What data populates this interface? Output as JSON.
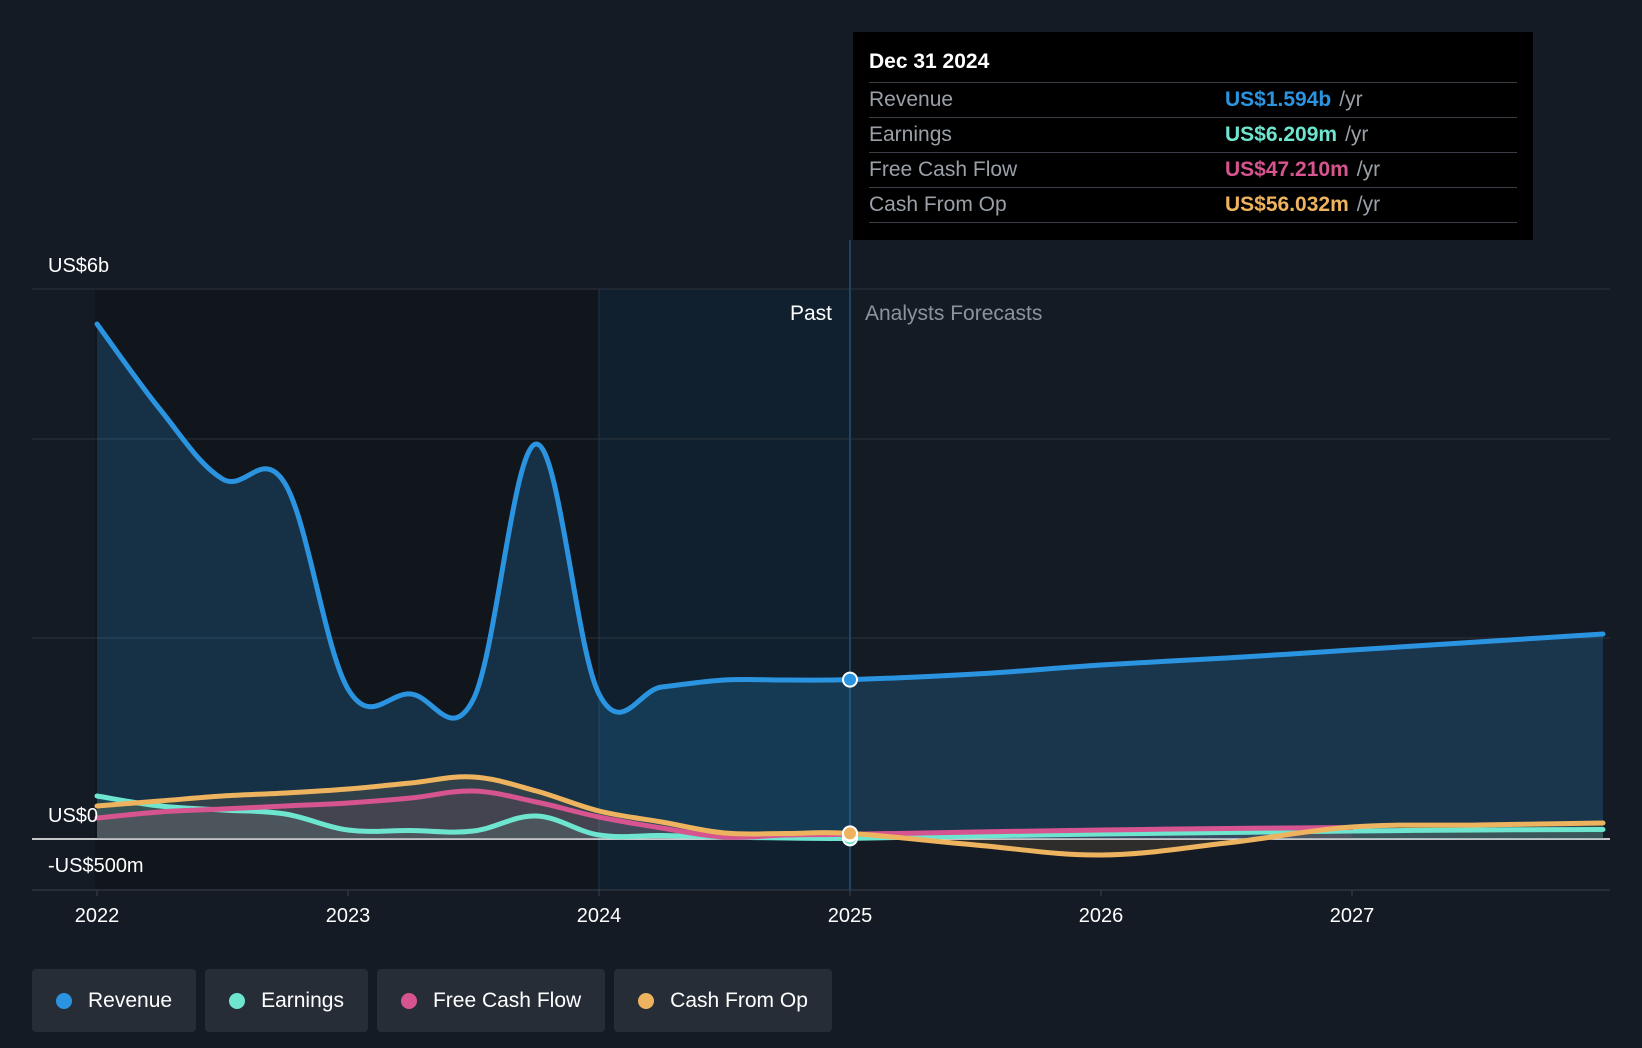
{
  "chart_data": {
    "type": "line",
    "x_ticks": [
      "2022",
      "2023",
      "2024",
      "2025",
      "2026",
      "2027"
    ],
    "y_labels": {
      "top": "US$6b",
      "zero": "US$0",
      "bottom": "-US$500m"
    },
    "ylim": [
      -500,
      5500
    ],
    "units": "US$ millions",
    "divider_labels": {
      "past": "Past",
      "forecast": "Analysts Forecasts"
    },
    "series": [
      {
        "name": "Revenue",
        "color": "#2b94e1",
        "fill": true,
        "points": [
          [
            2022.0,
            5150
          ],
          [
            2022.25,
            4300
          ],
          [
            2022.5,
            3600
          ],
          [
            2022.75,
            3550
          ],
          [
            2023.0,
            1500
          ],
          [
            2023.25,
            1450
          ],
          [
            2023.5,
            1400
          ],
          [
            2023.75,
            3950
          ],
          [
            2024.0,
            1450
          ],
          [
            2024.25,
            1520
          ],
          [
            2024.5,
            1590
          ],
          [
            2024.75,
            1590
          ],
          [
            2025.0,
            1594
          ],
          [
            2025.5,
            1650
          ],
          [
            2026.0,
            1740
          ],
          [
            2026.5,
            1810
          ],
          [
            2027.0,
            1890
          ],
          [
            2027.5,
            1970
          ],
          [
            2028.0,
            2050
          ]
        ]
      },
      {
        "name": "Earnings",
        "color": "#6ee6cf",
        "points": [
          [
            2022.0,
            430
          ],
          [
            2022.25,
            330
          ],
          [
            2022.5,
            290
          ],
          [
            2022.75,
            250
          ],
          [
            2023.0,
            90
          ],
          [
            2023.25,
            85
          ],
          [
            2023.5,
            80
          ],
          [
            2023.75,
            230
          ],
          [
            2024.0,
            40
          ],
          [
            2024.25,
            35
          ],
          [
            2024.5,
            20
          ],
          [
            2024.75,
            10
          ],
          [
            2025.0,
            6.209
          ],
          [
            2025.5,
            30
          ],
          [
            2026.0,
            50
          ],
          [
            2026.5,
            65
          ],
          [
            2027.0,
            80
          ],
          [
            2027.5,
            90
          ],
          [
            2028.0,
            95
          ]
        ]
      },
      {
        "name": "Free Cash Flow",
        "color": "#d6548f",
        "points": [
          [
            2022.0,
            210
          ],
          [
            2022.25,
            270
          ],
          [
            2022.5,
            300
          ],
          [
            2022.75,
            330
          ],
          [
            2023.0,
            360
          ],
          [
            2023.25,
            410
          ],
          [
            2023.5,
            480
          ],
          [
            2023.75,
            370
          ],
          [
            2024.0,
            220
          ],
          [
            2024.25,
            110
          ],
          [
            2024.5,
            20
          ],
          [
            2024.75,
            40
          ],
          [
            2025.0,
            47.21
          ],
          [
            2025.5,
            70
          ],
          [
            2026.0,
            90
          ],
          [
            2026.5,
            105
          ],
          [
            2027.0,
            115
          ]
        ]
      },
      {
        "name": "Cash From Op",
        "color": "#edb35f",
        "points": [
          [
            2022.0,
            330
          ],
          [
            2022.25,
            380
          ],
          [
            2022.5,
            430
          ],
          [
            2022.75,
            460
          ],
          [
            2023.0,
            500
          ],
          [
            2023.25,
            560
          ],
          [
            2023.5,
            620
          ],
          [
            2023.75,
            480
          ],
          [
            2024.0,
            280
          ],
          [
            2024.25,
            170
          ],
          [
            2024.5,
            60
          ],
          [
            2024.75,
            55
          ],
          [
            2025.0,
            56.032
          ],
          [
            2025.5,
            -60
          ],
          [
            2026.0,
            -160
          ],
          [
            2026.5,
            -40
          ],
          [
            2027.0,
            120
          ],
          [
            2027.5,
            140
          ],
          [
            2028.0,
            160
          ]
        ]
      }
    ]
  },
  "tooltip": {
    "date": "Dec 31 2024",
    "rows": [
      {
        "label": "Revenue",
        "value": "US$1.594b",
        "unit": "/yr",
        "color": "#2b94e1"
      },
      {
        "label": "Earnings",
        "value": "US$6.209m",
        "unit": "/yr",
        "color": "#6ee6cf"
      },
      {
        "label": "Free Cash Flow",
        "value": "US$47.210m",
        "unit": "/yr",
        "color": "#d6548f"
      },
      {
        "label": "Cash From Op",
        "value": "US$56.032m",
        "unit": "/yr",
        "color": "#edb35f"
      }
    ]
  },
  "legend": [
    {
      "label": "Revenue",
      "color": "#2b94e1"
    },
    {
      "label": "Earnings",
      "color": "#6ee6cf"
    },
    {
      "label": "Free Cash Flow",
      "color": "#d6548f"
    },
    {
      "label": "Cash From Op",
      "color": "#edb35f"
    }
  ]
}
